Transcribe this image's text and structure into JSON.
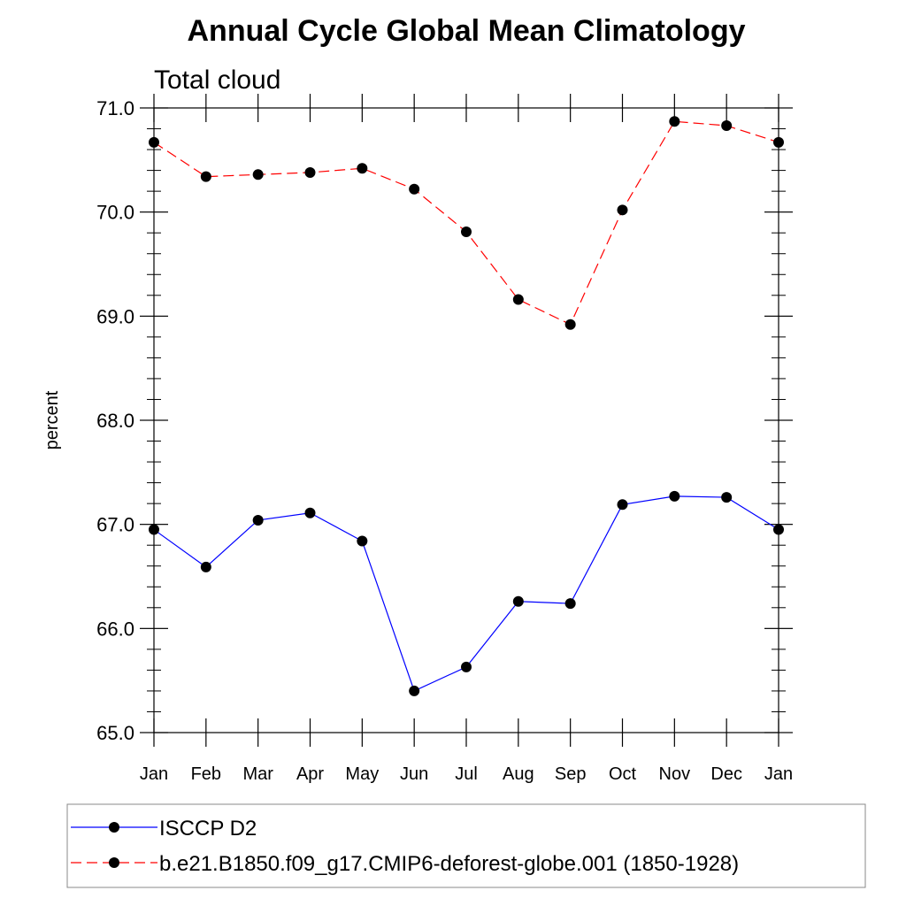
{
  "chart_data": {
    "type": "line",
    "title": "Annual Cycle Global Mean Climatology",
    "subtitle": "Total cloud",
    "ylabel": "percent",
    "xlabel": "",
    "categories": [
      "Jan",
      "Feb",
      "Mar",
      "Apr",
      "May",
      "Jun",
      "Jul",
      "Aug",
      "Sep",
      "Oct",
      "Nov",
      "Dec",
      "Jan"
    ],
    "ylim": [
      65.0,
      71.0
    ],
    "yticks": [
      65.0,
      66.0,
      67.0,
      68.0,
      69.0,
      70.0,
      71.0
    ],
    "grid": false,
    "legend_position": "bottom",
    "series": [
      {
        "name": "ISCCP D2",
        "color": "#0000ff",
        "line_style": "solid",
        "marker": "filled-circle",
        "values": [
          66.95,
          66.59,
          67.04,
          67.11,
          66.84,
          65.4,
          65.63,
          66.26,
          66.24,
          67.19,
          67.27,
          67.26,
          66.95
        ]
      },
      {
        "name": "b.e21.B1850.f09_g17.CMIP6-deforest-globe.001 (1850-1928)",
        "color": "#ff0000",
        "line_style": "dashed",
        "marker": "filled-circle",
        "values": [
          70.67,
          70.34,
          70.36,
          70.38,
          70.42,
          70.22,
          69.81,
          69.16,
          68.92,
          70.02,
          70.87,
          70.83,
          70.67
        ]
      }
    ]
  }
}
